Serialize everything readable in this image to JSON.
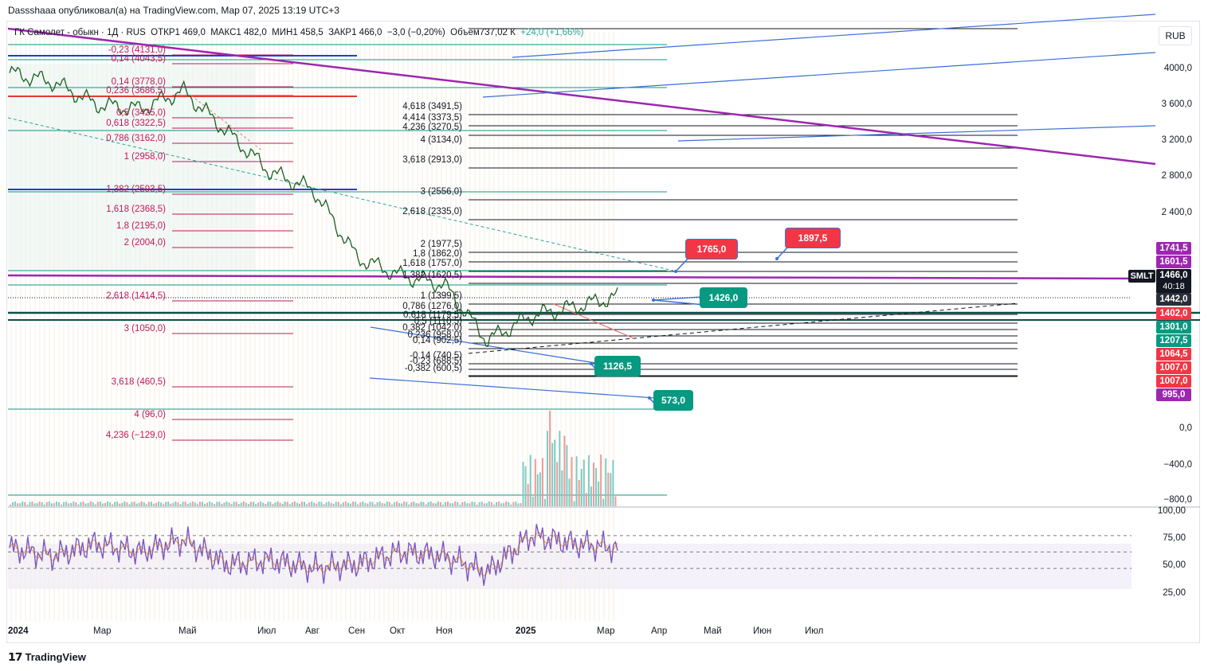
{
  "header": {
    "publish_text": "Dassshaaa опубликовал(а) на TradingView.com, Мар 07, 2025 13:19 UTC+3"
  },
  "legend": {
    "instrument": "ГК Самолет - обыкн",
    "interval": "1Д",
    "exchange": "RUS",
    "open": "ОТКР1 469,0",
    "high": "МАКС1 482,0",
    "low": "МИН1 458,5",
    "close": "ЗАКР1 466,0",
    "change": "−3,0 (−0,20%)",
    "volume": "Объем737,02 К",
    "volume_change": "+24,0 (+1,66%)"
  },
  "currency": "RUB",
  "symbol": "SMLT",
  "countdown": "40:18",
  "colors": {
    "bull": "#22ab94",
    "bear": "#f23645",
    "fib_left": "#c2185b",
    "purple_line": "#9c27b0",
    "blue_line": "#2962ff",
    "teal_line": "#089981",
    "rsi_line": "#7e57c2",
    "rsi_ma": "#f7a600"
  },
  "price_axis": {
    "ticks": [
      "4000,0",
      "3 600,0",
      "3 200,0",
      "2 800,0",
      "2 400,0",
      "0,0",
      "−400,0",
      "−800,0"
    ]
  },
  "rsi_axis": {
    "ticks": [
      "100,00",
      "75,00",
      "50,00",
      "25,00"
    ]
  },
  "time_axis": {
    "ticks": [
      "2024",
      "Мар",
      "Май",
      "Июл",
      "Авг",
      "Сен",
      "Окт",
      "Ноя",
      "2025",
      "Мар",
      "Апр",
      "Май",
      "Июн",
      "Июл"
    ]
  },
  "price_tags": [
    {
      "label": "1741,5",
      "color": "#9c27b0"
    },
    {
      "label": "1601,5",
      "color": "#9c27b0"
    },
    {
      "label": "1466,0",
      "color": "#131722"
    },
    {
      "label": "1442,0",
      "color": "#131722"
    },
    {
      "label": "1402,0",
      "color": "#f23645"
    },
    {
      "label": "1301,0",
      "color": "#089981"
    },
    {
      "label": "1207,5",
      "color": "#089981"
    },
    {
      "label": "1064,5",
      "color": "#f23645"
    },
    {
      "label": "1007,0",
      "color": "#f23645"
    },
    {
      "label": "1007,0",
      "color": "#f23645"
    },
    {
      "label": "995,0",
      "color": "#9c27b0"
    }
  ],
  "callouts": [
    {
      "label": "1765,0",
      "color": "#f23645"
    },
    {
      "label": "1897,5",
      "color": "#f23645"
    },
    {
      "label": "1426,0",
      "color": "#089981"
    },
    {
      "label": "1126,5",
      "color": "#089981"
    },
    {
      "label": "573,0",
      "color": "#089981"
    }
  ],
  "fib_left": [
    "-0,23 (4131,0)",
    "0,14 (4043,5)",
    "0,14 (3778,0)",
    "0,236 (3686,5)",
    "0,5 (3425,0)",
    "0,618 (3322,5)",
    "0,786 (3162,0)",
    "1 (2958,0)",
    "1,382 (2593,5)",
    "1,618 (2368,5)",
    "1,8 (2195,0)",
    "2 (2004,0)",
    "2,618 (1414,5)",
    "3 (1050,0)",
    "3,618 (460,5)",
    "4 (96,0)",
    "4,236 (−129,0)"
  ],
  "fib_right": [
    "4,618 (3491,5)",
    "4,414 (3373,5)",
    "4,236 (3270,5)",
    "4 (3134,0)",
    "3,618 (2913,0)",
    "3 (2556,0)",
    "2,618 (2335,0)",
    "2 (1977,5)",
    "1,8 (1862,0)",
    "1,618 (1757,0)",
    "1,382 (1620,5)",
    "1 (1399,5)",
    "0,786 (1276,0)",
    "0,618 (1179,5)",
    "0,5 (1110,5)",
    "0,382 (1042,0)",
    "0,236 (958,0)",
    "0,14 (902,5)",
    "-0,14 (740,5)",
    "-0,23 (688,5)",
    "-0,382 (600,5)"
  ],
  "chart_data": {
    "type": "line",
    "title": "ГК Самолет - обыкн · 1Д · RUS",
    "xlabel": "",
    "ylabel": "RUB",
    "x": [
      "2024-01",
      "2024-02",
      "2024-03",
      "2024-04",
      "2024-05",
      "2024-06",
      "2024-07",
      "2024-08",
      "2024-09",
      "2024-10",
      "2024-11",
      "2024-12",
      "2025-01",
      "2025-02",
      "2025-03"
    ],
    "series": [
      {
        "name": "SMLT",
        "values": [
          3950,
          3850,
          3600,
          3550,
          3750,
          3300,
          2850,
          2650,
          1900,
          1700,
          1600,
          980,
          1250,
          1350,
          1466
        ]
      }
    ],
    "ylim": [
      -900,
      4300
    ],
    "rsi": {
      "ylim": [
        0,
        100
      ],
      "levels": [
        70,
        50,
        30
      ],
      "values": [
        55,
        45,
        60,
        50,
        65,
        35,
        40,
        30,
        35,
        50,
        45,
        25,
        70,
        60,
        55
      ]
    },
    "grid": false,
    "legend": "top-left"
  }
}
